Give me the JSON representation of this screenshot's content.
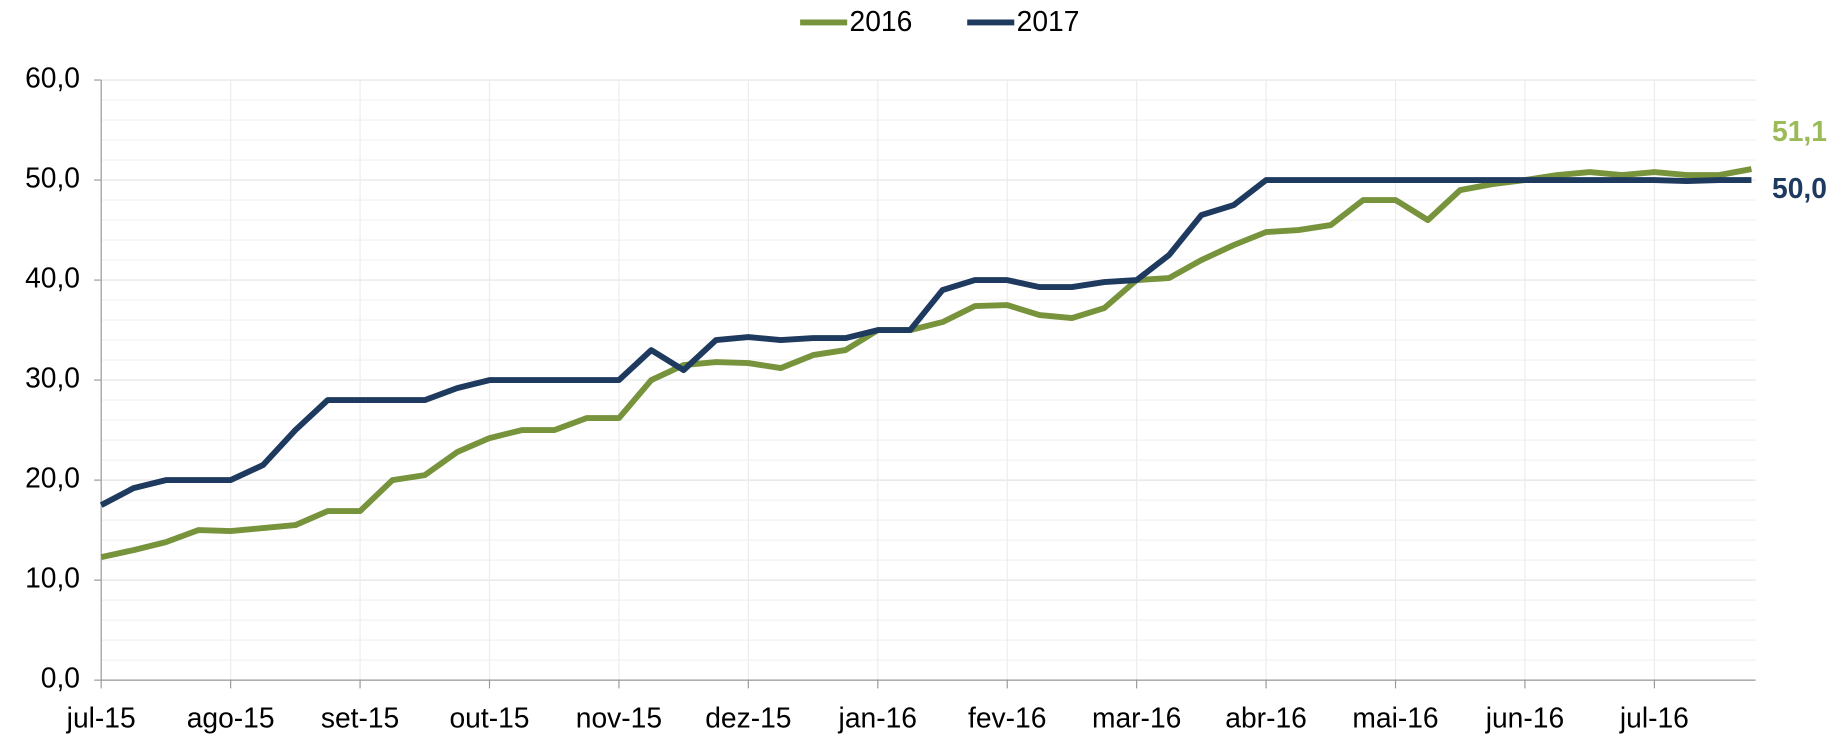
{
  "chart_data": {
    "type": "line",
    "categories": [
      "jul-15",
      null,
      null,
      null,
      "ago-15",
      null,
      null,
      null,
      "set-15",
      null,
      null,
      null,
      "out-15",
      null,
      null,
      null,
      "nov-15",
      null,
      null,
      null,
      "dez-15",
      null,
      null,
      null,
      "jan-16",
      null,
      null,
      null,
      "fev-16",
      null,
      null,
      null,
      "mar-16",
      null,
      null,
      null,
      "abr-16",
      null,
      null,
      null,
      "mai-16",
      null,
      null,
      null,
      "jun-16",
      null,
      null,
      null,
      "jul-16",
      null,
      null,
      null
    ],
    "series": [
      {
        "name": "2016",
        "color": "#77933c",
        "label_color": "#9bbb59",
        "values": [
          12.3,
          13.0,
          13.8,
          15.0,
          14.9,
          15.2,
          15.5,
          16.9,
          16.9,
          20.0,
          20.5,
          22.8,
          24.2,
          25.0,
          25.0,
          26.2,
          26.2,
          30.0,
          31.5,
          31.8,
          31.7,
          31.2,
          32.5,
          33.0,
          35.0,
          35.0,
          35.8,
          37.4,
          37.5,
          36.5,
          36.2,
          37.2,
          40.0,
          40.2,
          42.0,
          43.5,
          44.8,
          45.0,
          45.5,
          48.0,
          48.0,
          46.0,
          49.0,
          49.6,
          50.0,
          50.5,
          50.8,
          50.5,
          50.8,
          50.5,
          50.5,
          51.1
        ],
        "value_labels": [
          null,
          null,
          null,
          null,
          null,
          null,
          null,
          null,
          null,
          null,
          null,
          null,
          null,
          null,
          null,
          null,
          null,
          null,
          null,
          null,
          null,
          null,
          null,
          null,
          null,
          null,
          null,
          null,
          null,
          null,
          null,
          null,
          null,
          null,
          null,
          null,
          null,
          null,
          null,
          null,
          null,
          null,
          null,
          null,
          null,
          null,
          null,
          null,
          null,
          null,
          null,
          "51,1"
        ]
      },
      {
        "name": "2017",
        "color": "#1f3a5f",
        "label_color": "#1f3a5f",
        "values": [
          17.5,
          19.2,
          20.0,
          20.0,
          20.0,
          21.5,
          25.0,
          28.0,
          28.0,
          28.0,
          28.0,
          29.2,
          30.0,
          30.0,
          30.0,
          30.0,
          30.0,
          33.0,
          31.0,
          34.0,
          34.3,
          34.0,
          34.2,
          34.2,
          35.0,
          35.0,
          39.0,
          40.0,
          40.0,
          39.3,
          39.3,
          39.8,
          40.0,
          42.5,
          46.5,
          47.5,
          50.0,
          50.0,
          50.0,
          50.0,
          50.0,
          50.0,
          50.0,
          50.0,
          50.0,
          50.0,
          50.0,
          50.0,
          50.0,
          49.9,
          50.0,
          50.0
        ],
        "value_labels": [
          null,
          null,
          null,
          null,
          null,
          null,
          null,
          null,
          null,
          null,
          null,
          null,
          null,
          null,
          null,
          null,
          null,
          null,
          null,
          null,
          null,
          null,
          null,
          null,
          null,
          null,
          null,
          null,
          null,
          null,
          null,
          null,
          null,
          null,
          null,
          null,
          null,
          null,
          null,
          null,
          null,
          null,
          null,
          null,
          null,
          null,
          null,
          null,
          null,
          null,
          null,
          "50,0"
        ]
      }
    ],
    "ylim": [
      0,
      60
    ],
    "yticks": [
      {
        "value": 0,
        "label": "0,0"
      },
      {
        "value": 10,
        "label": "10,0"
      },
      {
        "value": 20,
        "label": "20,0"
      },
      {
        "value": 30,
        "label": "30,0"
      },
      {
        "value": 40,
        "label": "40,0"
      },
      {
        "value": 50,
        "label": "50,0"
      },
      {
        "value": 60,
        "label": "60,0"
      }
    ],
    "grid": true,
    "legend": "top"
  }
}
